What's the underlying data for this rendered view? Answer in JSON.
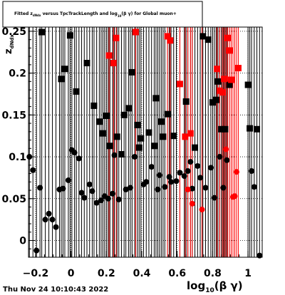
{
  "title": {
    "part1": "Fitted  z",
    "sub1": "dNdx",
    "part2": "  versus TpcTrackLength and log",
    "sub2": "10",
    "part3": "(β γ) for Global muon+"
  },
  "timestamp": "Thu Nov 24 10:10:43 2022",
  "colors": {
    "background": "#ffffff",
    "black_series": "#000000",
    "red_series": "#ff0000"
  },
  "chart_data": {
    "type": "scatter",
    "title": "Fitted  z dNdx  versus TpcTrackLength and log10(β γ) for Global muon+",
    "xlabel": {
      "main": "log",
      "sub": "10",
      "rest": "(β γ)"
    },
    "ylabel": {
      "main": "z",
      "sub": "dNdx"
    },
    "xlim": [
      -0.24,
      1.08
    ],
    "ylim": [
      -0.02,
      0.255
    ],
    "xticks": [
      -0.2,
      0,
      0.2,
      0.4,
      0.6,
      0.8,
      1
    ],
    "xtick_labels": [
      "−0.2",
      "0",
      "0.2",
      "0.4",
      "0.6",
      "0.8",
      "1"
    ],
    "yticks": [
      0,
      0.05,
      0.1,
      0.15,
      0.2,
      0.25
    ],
    "ytick_labels": [
      "0",
      "0.05",
      "0.1",
      "0.15",
      "0.2",
      "0.25"
    ],
    "grid": true,
    "error_bars": "vertical, full plot height",
    "series": [
      {
        "color": "#000000",
        "markers": [
          "circle",
          "square"
        ],
        "points": [
          {
            "x": -0.235,
            "y": 0.1,
            "m": "circle"
          },
          {
            "x": -0.215,
            "y": 0.084,
            "m": "circle"
          },
          {
            "x": -0.195,
            "y": -0.012,
            "m": "circle"
          },
          {
            "x": -0.175,
            "y": 0.063,
            "m": "circle"
          },
          {
            "x": -0.165,
            "y": 0.249,
            "m": "square"
          },
          {
            "x": -0.145,
            "y": 0.025,
            "m": "circle"
          },
          {
            "x": -0.125,
            "y": 0.032,
            "m": "circle"
          },
          {
            "x": -0.105,
            "y": 0.025,
            "m": "circle"
          },
          {
            "x": -0.085,
            "y": 0.016,
            "m": "circle"
          },
          {
            "x": -0.065,
            "y": 0.061,
            "m": "circle"
          },
          {
            "x": -0.055,
            "y": 0.193,
            "m": "square"
          },
          {
            "x": -0.045,
            "y": 0.062,
            "m": "circle"
          },
          {
            "x": -0.035,
            "y": 0.205,
            "m": "square"
          },
          {
            "x": -0.015,
            "y": 0.072,
            "m": "circle"
          },
          {
            "x": -0.005,
            "y": 0.245,
            "m": "square"
          },
          {
            "x": 0.005,
            "y": 0.108,
            "m": "circle"
          },
          {
            "x": 0.02,
            "y": 0.105,
            "m": "circle"
          },
          {
            "x": 0.03,
            "y": 0.178,
            "m": "square"
          },
          {
            "x": 0.045,
            "y": 0.098,
            "m": "circle"
          },
          {
            "x": 0.06,
            "y": 0.057,
            "m": "circle"
          },
          {
            "x": 0.075,
            "y": 0.051,
            "m": "circle"
          },
          {
            "x": 0.09,
            "y": 0.212,
            "m": "square"
          },
          {
            "x": 0.105,
            "y": 0.067,
            "m": "circle"
          },
          {
            "x": 0.12,
            "y": 0.059,
            "m": "circle"
          },
          {
            "x": 0.13,
            "y": 0.161,
            "m": "square"
          },
          {
            "x": 0.145,
            "y": 0.045,
            "m": "circle"
          },
          {
            "x": 0.16,
            "y": 0.142,
            "m": "square"
          },
          {
            "x": 0.17,
            "y": 0.048,
            "m": "circle"
          },
          {
            "x": 0.18,
            "y": 0.128,
            "m": "square"
          },
          {
            "x": 0.19,
            "y": 0.053,
            "m": "circle"
          },
          {
            "x": 0.2,
            "y": 0.149,
            "m": "square"
          },
          {
            "x": 0.21,
            "y": 0.05,
            "m": "circle"
          },
          {
            "x": 0.22,
            "y": 0.113,
            "m": "square"
          },
          {
            "x": 0.235,
            "y": 0.056,
            "m": "circle"
          },
          {
            "x": 0.245,
            "y": 0.102,
            "m": "circle"
          },
          {
            "x": 0.26,
            "y": 0.124,
            "m": "square"
          },
          {
            "x": 0.27,
            "y": 0.049,
            "m": "circle"
          },
          {
            "x": 0.285,
            "y": 0.103,
            "m": "square"
          },
          {
            "x": 0.3,
            "y": 0.15,
            "m": "square"
          },
          {
            "x": 0.31,
            "y": 0.061,
            "m": "circle"
          },
          {
            "x": 0.325,
            "y": 0.158,
            "m": "square"
          },
          {
            "x": 0.335,
            "y": 0.063,
            "m": "circle"
          },
          {
            "x": 0.345,
            "y": 0.201,
            "m": "square"
          },
          {
            "x": 0.36,
            "y": 0.1,
            "m": "circle"
          },
          {
            "x": 0.375,
            "y": 0.138,
            "m": "square"
          },
          {
            "x": 0.385,
            "y": 0.111,
            "m": "square"
          },
          {
            "x": 0.395,
            "y": 0.122,
            "m": "square"
          },
          {
            "x": 0.41,
            "y": 0.067,
            "m": "circle"
          },
          {
            "x": 0.425,
            "y": 0.07,
            "m": "circle"
          },
          {
            "x": 0.44,
            "y": 0.129,
            "m": "square"
          },
          {
            "x": 0.455,
            "y": 0.088,
            "m": "circle"
          },
          {
            "x": 0.47,
            "y": 0.113,
            "m": "square"
          },
          {
            "x": 0.48,
            "y": 0.17,
            "m": "square"
          },
          {
            "x": 0.49,
            "y": 0.061,
            "m": "circle"
          },
          {
            "x": 0.5,
            "y": 0.078,
            "m": "circle"
          },
          {
            "x": 0.51,
            "y": 0.142,
            "m": "square"
          },
          {
            "x": 0.52,
            "y": 0.124,
            "m": "square"
          },
          {
            "x": 0.53,
            "y": 0.064,
            "m": "circle"
          },
          {
            "x": 0.545,
            "y": 0.151,
            "m": "square"
          },
          {
            "x": 0.555,
            "y": 0.076,
            "m": "circle"
          },
          {
            "x": 0.565,
            "y": 0.07,
            "m": "circle"
          },
          {
            "x": 0.58,
            "y": 0.125,
            "m": "square"
          },
          {
            "x": 0.595,
            "y": 0.071,
            "m": "circle"
          },
          {
            "x": 0.615,
            "y": 0.081,
            "m": "circle"
          },
          {
            "x": 0.64,
            "y": 0.077,
            "m": "circle"
          },
          {
            "x": 0.65,
            "y": 0.166,
            "m": "square"
          },
          {
            "x": 0.66,
            "y": 0.083,
            "m": "circle"
          },
          {
            "x": 0.675,
            "y": 0.094,
            "m": "circle"
          },
          {
            "x": 0.685,
            "y": 0.062,
            "m": "circle"
          },
          {
            "x": 0.7,
            "y": 0.111,
            "m": "square"
          },
          {
            "x": 0.715,
            "y": 0.089,
            "m": "circle"
          },
          {
            "x": 0.73,
            "y": 0.075,
            "m": "circle"
          },
          {
            "x": 0.745,
            "y": 0.244,
            "m": "square"
          },
          {
            "x": 0.76,
            "y": 0.063,
            "m": "circle"
          },
          {
            "x": 0.775,
            "y": 0.24,
            "m": "square"
          },
          {
            "x": 0.79,
            "y": 0.087,
            "m": "circle"
          },
          {
            "x": 0.8,
            "y": 0.165,
            "m": "square"
          },
          {
            "x": 0.81,
            "y": 0.051,
            "m": "circle"
          },
          {
            "x": 0.82,
            "y": 0.168,
            "m": "square"
          },
          {
            "x": 0.83,
            "y": 0.19,
            "m": "square"
          },
          {
            "x": 0.84,
            "y": 0.1,
            "m": "circle"
          },
          {
            "x": 0.85,
            "y": 0.133,
            "m": "square"
          },
          {
            "x": 0.86,
            "y": 0.063,
            "m": "circle"
          },
          {
            "x": 0.87,
            "y": 0.133,
            "m": "square"
          },
          {
            "x": 0.88,
            "y": 0.096,
            "m": "circle"
          },
          {
            "x": 0.895,
            "y": 0.186,
            "m": "square"
          },
          {
            "x": 1.0,
            "y": 0.186,
            "m": "square"
          },
          {
            "x": 1.01,
            "y": 0.134,
            "m": "square"
          },
          {
            "x": 1.02,
            "y": 0.083,
            "m": "circle"
          },
          {
            "x": 1.035,
            "y": 0.064,
            "m": "circle"
          },
          {
            "x": 1.05,
            "y": 0.133,
            "m": "square"
          },
          {
            "x": 1.065,
            "y": -0.018,
            "m": "circle"
          }
        ]
      },
      {
        "color": "#ff0000",
        "markers": [
          "circle",
          "square"
        ],
        "points": [
          {
            "x": 0.215,
            "y": 0.221,
            "m": "square"
          },
          {
            "x": 0.24,
            "y": 0.212,
            "m": "square"
          },
          {
            "x": 0.255,
            "y": 0.242,
            "m": "square"
          },
          {
            "x": 0.365,
            "y": 0.249,
            "m": "square"
          },
          {
            "x": 0.545,
            "y": 0.244,
            "m": "square"
          },
          {
            "x": 0.56,
            "y": 0.239,
            "m": "square"
          },
          {
            "x": 0.615,
            "y": 0.187,
            "m": "square"
          },
          {
            "x": 0.645,
            "y": 0.124,
            "m": "square"
          },
          {
            "x": 0.66,
            "y": 0.061,
            "m": "circle"
          },
          {
            "x": 0.675,
            "y": 0.128,
            "m": "square"
          },
          {
            "x": 0.685,
            "y": 0.044,
            "m": "circle"
          },
          {
            "x": 0.74,
            "y": 0.037,
            "m": "circle"
          },
          {
            "x": 0.825,
            "y": 0.205,
            "m": "square"
          },
          {
            "x": 0.84,
            "y": 0.179,
            "m": "square"
          },
          {
            "x": 0.855,
            "y": 0.177,
            "m": "square"
          },
          {
            "x": 0.865,
            "y": 0.193,
            "m": "square"
          },
          {
            "x": 0.875,
            "y": 0.109,
            "m": "circle"
          },
          {
            "x": 0.885,
            "y": 0.242,
            "m": "square"
          },
          {
            "x": 0.895,
            "y": 0.227,
            "m": "square"
          },
          {
            "x": 0.905,
            "y": 0.192,
            "m": "square"
          },
          {
            "x": 0.915,
            "y": 0.052,
            "m": "circle"
          },
          {
            "x": 0.925,
            "y": 0.053,
            "m": "circle"
          },
          {
            "x": 0.935,
            "y": 0.082,
            "m": "circle"
          },
          {
            "x": 0.945,
            "y": 0.206,
            "m": "square"
          }
        ]
      }
    ]
  }
}
